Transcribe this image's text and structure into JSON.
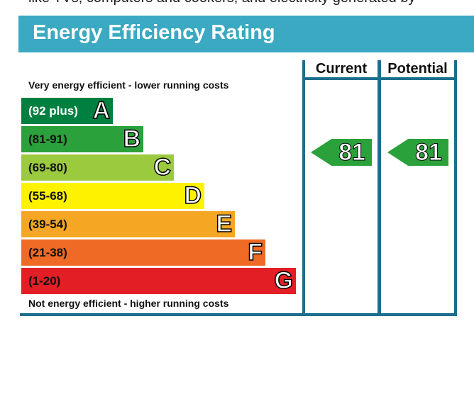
{
  "cut_text": "like TVs, computers and cookers, and electricity generated by",
  "title": "Energy Efficiency Rating",
  "columns": {
    "current": "Current",
    "potential": "Potential"
  },
  "top_caption": "Very energy efficient - lower running costs",
  "bottom_caption": "Not energy efficient - higher running costs",
  "colors": {
    "banner": "#3aa9c1",
    "frame": "#1d6e8e",
    "A": "#008040",
    "B": "#2aa13a",
    "C": "#9bca3e",
    "D": "#fff200",
    "E": "#f5a623",
    "F": "#ef6a25",
    "G": "#e31e25"
  },
  "chart_data": {
    "type": "bar",
    "title": "Energy Efficiency Rating",
    "categories": [
      "A",
      "B",
      "C",
      "D",
      "E",
      "F",
      "G"
    ],
    "ranges": [
      "(92 plus)",
      "(81-91)",
      "(69-80)",
      "(55-68)",
      "(39-54)",
      "(21-38)",
      "(1-20)"
    ],
    "current": {
      "value": "81",
      "band": "B"
    },
    "potential": {
      "value": "81",
      "band": "B"
    }
  }
}
